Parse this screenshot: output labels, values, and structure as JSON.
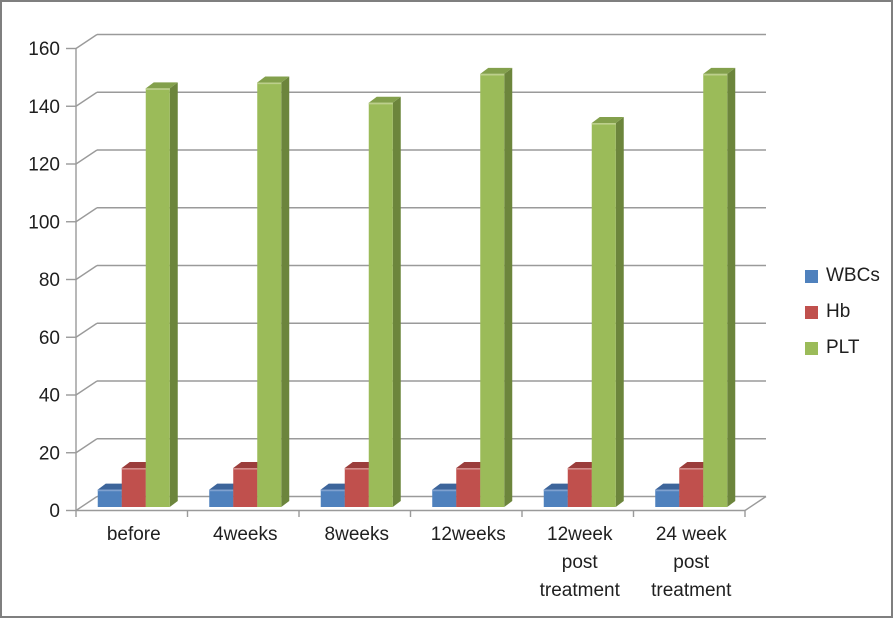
{
  "chart_data": {
    "type": "bar",
    "subtype": "3d-clustered-column",
    "title": "",
    "xlabel": "",
    "ylabel": "",
    "categories": [
      "before",
      "4weeks",
      "8weeks",
      "12weeks",
      "12week post treatment",
      "24 week post treatment"
    ],
    "category_label_lines": [
      [
        "before"
      ],
      [
        "4weeks"
      ],
      [
        "8weeks"
      ],
      [
        "12weeks"
      ],
      [
        "12week",
        "post",
        "treatment"
      ],
      [
        "24 week",
        "post",
        "treatment"
      ]
    ],
    "series": [
      {
        "name": "WBCs",
        "values": [
          6,
          6,
          6,
          6,
          6,
          6
        ],
        "color": "#4F81BD",
        "color_top": "#3D659B",
        "color_side": "#2F5186",
        "color_bevel": "#7FA1CF"
      },
      {
        "name": "Hb",
        "values": [
          13.5,
          13.5,
          13.5,
          13.5,
          13.5,
          13.5
        ],
        "color": "#C0504D",
        "color_top": "#9B3D3B",
        "color_side": "#8A3634",
        "color_bevel": "#D28B89"
      },
      {
        "name": "PLT",
        "values": [
          145,
          147,
          140,
          150,
          133,
          150
        ],
        "color": "#9BBB59",
        "color_top": "#83A04C",
        "color_side": "#6C853C",
        "color_bevel": "#BCCF8C"
      }
    ],
    "ylim": [
      0,
      160
    ],
    "ytick_step": 20,
    "yticks": [
      0,
      20,
      40,
      60,
      80,
      100,
      120,
      140,
      160
    ],
    "grid": true,
    "legend_position": "right",
    "legend_entries": [
      "WBCs",
      "Hb",
      "PLT"
    ],
    "axis_color": "#9A9A9A",
    "text_color": "#1F1F1F",
    "border_color": "#7F7F7F",
    "background": "#FFFFFF"
  }
}
